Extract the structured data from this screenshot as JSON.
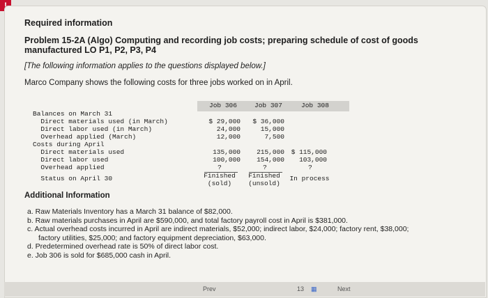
{
  "alert": "!",
  "header": {
    "required": "Required information",
    "problem_title": "Problem 15-2A (Algo) Computing and recording job costs; preparing schedule of cost of goods manufactured LO P1, P2, P3, P4",
    "note": "[The following information applies to the questions displayed below.]",
    "intro": "Marco Company shows the following costs for three jobs worked on in April."
  },
  "table": {
    "columns": [
      "Job 306",
      "Job 307",
      "Job 308"
    ],
    "rows": [
      {
        "label": "Balances on March 31",
        "values": [
          "",
          "",
          ""
        ]
      },
      {
        "label": "  Direct materials used (in March)",
        "values": [
          "$ 29,000",
          "$ 36,000",
          ""
        ]
      },
      {
        "label": "  Direct labor used (in March)",
        "values": [
          "24,000",
          "15,000",
          ""
        ]
      },
      {
        "label": "  Overhead applied (March)",
        "values": [
          "12,000",
          "7,500",
          ""
        ]
      },
      {
        "label": "Costs during April",
        "values": [
          "",
          "",
          ""
        ]
      },
      {
        "label": "  Direct materials used",
        "values": [
          "135,000",
          "215,000",
          "$ 115,000"
        ]
      },
      {
        "label": "  Direct labor used",
        "values": [
          "100,000",
          "154,000",
          "103,000"
        ]
      },
      {
        "label": "  Overhead applied",
        "values": [
          "?",
          "?",
          "?"
        ]
      },
      {
        "label": "  Status on April 30",
        "values": [
          "Finished (sold)",
          "Finished (unsold)",
          "In process"
        ]
      }
    ]
  },
  "additional": {
    "title": "Additional Information",
    "items": [
      "a. Raw Materials Inventory has a March 31 balance of $82,000.",
      "b. Raw materials purchases in April are $590,000, and total factory payroll cost in April is $381,000.",
      "c. Actual overhead costs incurred in April are indirect materials, $52,000; indirect labor, $24,000; factory rent, $38,000;",
      "factory utilities, $25,000; and factory equipment depreciation, $63,000.",
      "d. Predetermined overhead rate is 50% of direct labor cost.",
      "e. Job 306 is sold for $685,000 cash in April."
    ]
  },
  "footer": {
    "prev": "Prev",
    "page": "13",
    "next": "Next"
  }
}
